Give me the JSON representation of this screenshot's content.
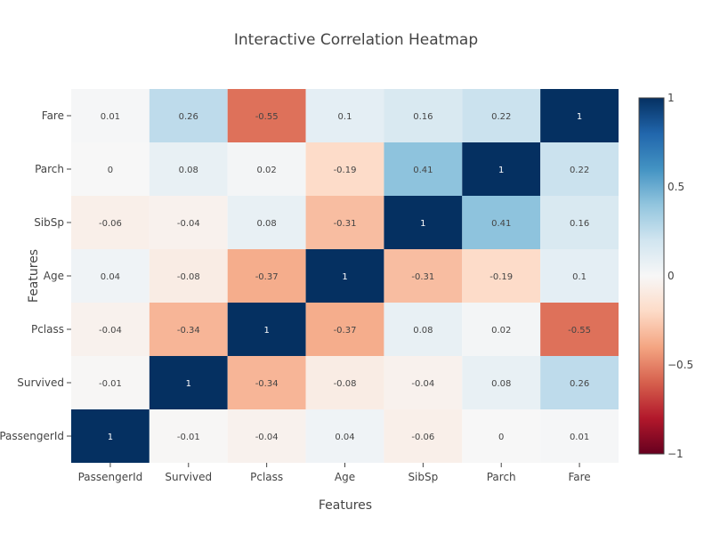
{
  "chart_data": {
    "type": "heatmap",
    "title": "Interactive Correlation Heatmap",
    "xlabel": "Features",
    "ylabel": "Features",
    "x": [
      "PassengerId",
      "Survived",
      "Pclass",
      "Age",
      "SibSp",
      "Parch",
      "Fare"
    ],
    "y": [
      "PassengerId",
      "Survived",
      "Pclass",
      "Age",
      "SibSp",
      "Parch",
      "Fare"
    ],
    "z": [
      [
        1,
        -0.01,
        -0.04,
        0.04,
        -0.06,
        0,
        0.01
      ],
      [
        -0.01,
        1,
        -0.34,
        -0.08,
        -0.04,
        0.08,
        0.26
      ],
      [
        -0.04,
        -0.34,
        1,
        -0.37,
        0.08,
        0.02,
        -0.55
      ],
      [
        0.04,
        -0.08,
        -0.37,
        1,
        -0.31,
        -0.19,
        0.1
      ],
      [
        -0.06,
        -0.04,
        0.08,
        -0.31,
        1,
        0.41,
        0.16
      ],
      [
        0,
        0.08,
        0.02,
        -0.19,
        0.41,
        1,
        0.22
      ],
      [
        0.01,
        0.26,
        -0.55,
        0.1,
        0.16,
        0.22,
        1
      ]
    ],
    "zrange": [
      -1,
      1
    ],
    "colorscale": "RdBu",
    "colorbar_ticks": [
      "1",
      "0.5",
      "0",
      "−0.5",
      "−1"
    ],
    "colorbar_tick_values": [
      1,
      0.5,
      0,
      -0.5,
      -1
    ],
    "grid": false
  }
}
